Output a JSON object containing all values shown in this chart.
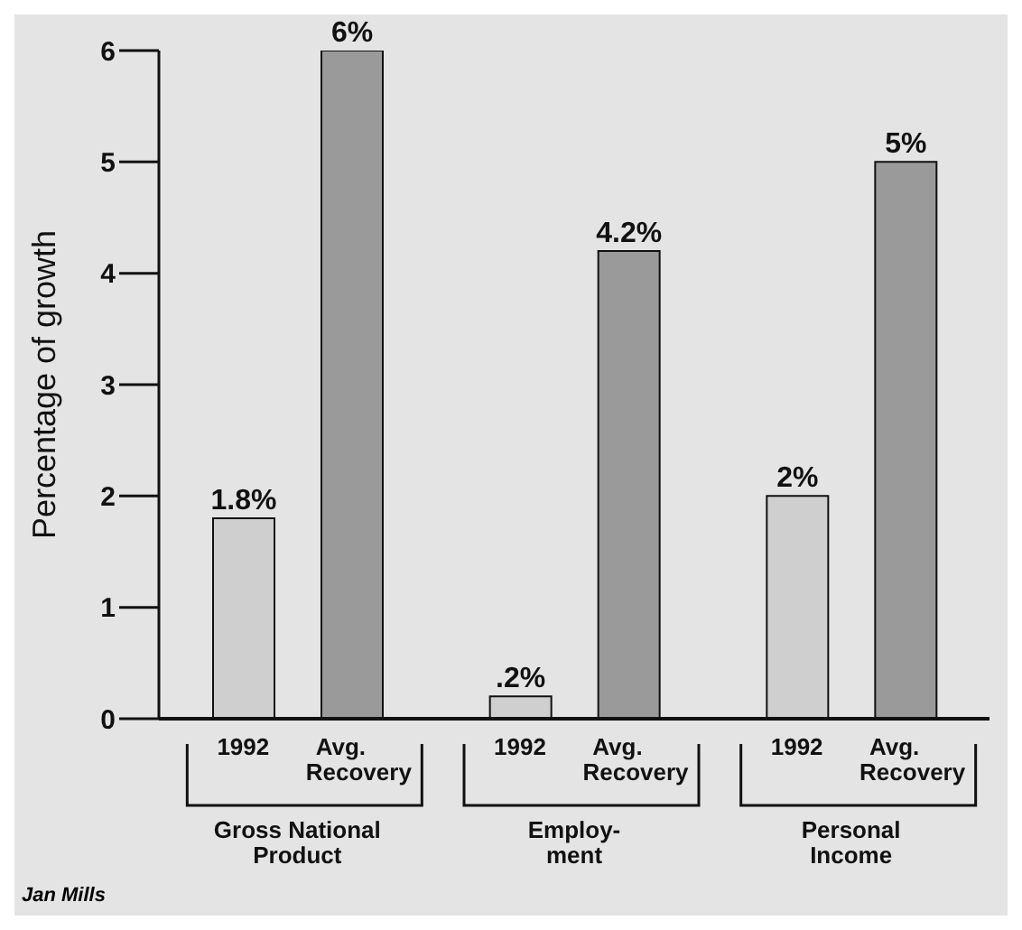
{
  "chart_data": {
    "type": "bar",
    "ylabel": "Percentage of growth",
    "categories": [
      "Gross National Product",
      "Employ-ment",
      "Personal Income"
    ],
    "series": [
      {
        "name": "1992",
        "color": "#cfcfcf",
        "values": [
          1.8,
          0.2,
          2
        ],
        "value_labels": [
          "1.8%",
          ".2%",
          "2%"
        ]
      },
      {
        "name": "Avg. Recovery",
        "color": "#9a9a9a",
        "values": [
          6,
          4.2,
          5
        ],
        "value_labels": [
          "6%",
          "4.2%",
          "5%"
        ]
      }
    ],
    "ylim": [
      0,
      6
    ],
    "yticks": [
      0,
      1,
      2,
      3,
      4,
      5,
      6
    ],
    "annotations": [
      "Jan Mills"
    ]
  }
}
